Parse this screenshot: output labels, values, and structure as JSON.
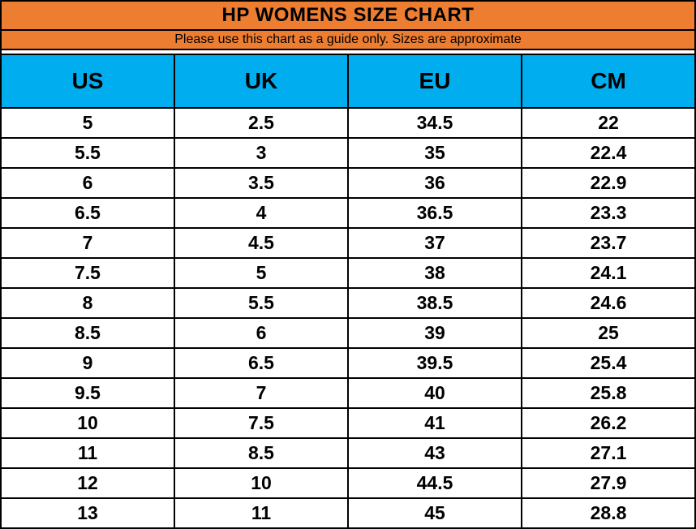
{
  "colors": {
    "title_background": "#ED7D31",
    "header_background": "#00AEEF",
    "border": "#000000",
    "text": "#000000",
    "row_background": "#FFFFFF"
  },
  "chart_data": {
    "type": "table",
    "title": "HP WOMENS SIZE CHART",
    "subtitle": "Please use this chart as a guide only. Sizes are approximate",
    "columns": [
      "US",
      "UK",
      "EU",
      "CM"
    ],
    "rows": [
      [
        "5",
        "2.5",
        "34.5",
        "22"
      ],
      [
        "5.5",
        "3",
        "35",
        "22.4"
      ],
      [
        "6",
        "3.5",
        "36",
        "22.9"
      ],
      [
        "6.5",
        "4",
        "36.5",
        "23.3"
      ],
      [
        "7",
        "4.5",
        "37",
        "23.7"
      ],
      [
        "7.5",
        "5",
        "38",
        "24.1"
      ],
      [
        "8",
        "5.5",
        "38.5",
        "24.6"
      ],
      [
        "8.5",
        "6",
        "39",
        "25"
      ],
      [
        "9",
        "6.5",
        "39.5",
        "25.4"
      ],
      [
        "9.5",
        "7",
        "40",
        "25.8"
      ],
      [
        "10",
        "7.5",
        "41",
        "26.2"
      ],
      [
        "11",
        "8.5",
        "43",
        "27.1"
      ],
      [
        "12",
        "10",
        "44.5",
        "27.9"
      ],
      [
        "13",
        "11",
        "45",
        "28.8"
      ]
    ]
  }
}
